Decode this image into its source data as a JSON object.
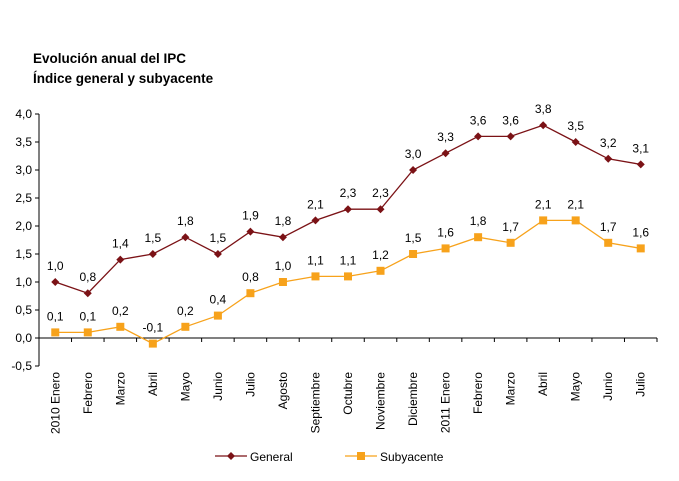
{
  "chart_data": {
    "type": "line",
    "title": "Evolución anual del IPC",
    "subtitle": "Índice general y subyacente",
    "xlabel": "",
    "ylabel": "",
    "ylim": [
      -0.5,
      4.0
    ],
    "yticks": [
      "4,0",
      "3,5",
      "3,0",
      "2,5",
      "2,0",
      "1,5",
      "1,0",
      "0,5",
      "0,0",
      "-0,5"
    ],
    "ytick_values": [
      4.0,
      3.5,
      3.0,
      2.5,
      2.0,
      1.5,
      1.0,
      0.5,
      0.0,
      -0.5
    ],
    "grid": false,
    "legend": "bottom",
    "categories": [
      "2010 Enero",
      "Febrero",
      "Marzo",
      "Abril",
      "Mayo",
      "Junio",
      "Julio",
      "Agosto",
      "Septiembre",
      "Octubre",
      "Noviembre",
      "Diciembre",
      "2011 Enero",
      "Febrero",
      "Marzo",
      "Abril",
      "Mayo",
      "Junio",
      "Julio"
    ],
    "series": [
      {
        "name": "General",
        "color": "#7b1216",
        "marker": "diamond",
        "values": [
          1.0,
          0.8,
          1.4,
          1.5,
          1.8,
          1.5,
          1.9,
          1.8,
          2.1,
          2.3,
          2.3,
          3.0,
          3.3,
          3.6,
          3.6,
          3.8,
          3.5,
          3.2,
          3.1
        ],
        "labels": [
          "1,0",
          "0,8",
          "1,4",
          "1,5",
          "1,8",
          "1,5",
          "1,9",
          "1,8",
          "2,1",
          "2,3",
          "2,3",
          "3,0",
          "3,3",
          "3,6",
          "3,6",
          "3,8",
          "3,5",
          "3,2",
          "3,1"
        ]
      },
      {
        "name": "Subyacente",
        "color": "#f7a21b",
        "marker": "square",
        "values": [
          0.1,
          0.1,
          0.2,
          -0.1,
          0.2,
          0.4,
          0.8,
          1.0,
          1.1,
          1.1,
          1.2,
          1.5,
          1.6,
          1.8,
          1.7,
          2.1,
          2.1,
          1.7,
          1.6
        ],
        "labels": [
          "0,1",
          "0,1",
          "0,2",
          "-0,1",
          "0,2",
          "0,4",
          "0,8",
          "1,0",
          "1,1",
          "1,1",
          "1,2",
          "1,5",
          "1,6",
          "1,8",
          "1,7",
          "2,1",
          "2,1",
          "1,7",
          "1,6"
        ]
      }
    ]
  }
}
